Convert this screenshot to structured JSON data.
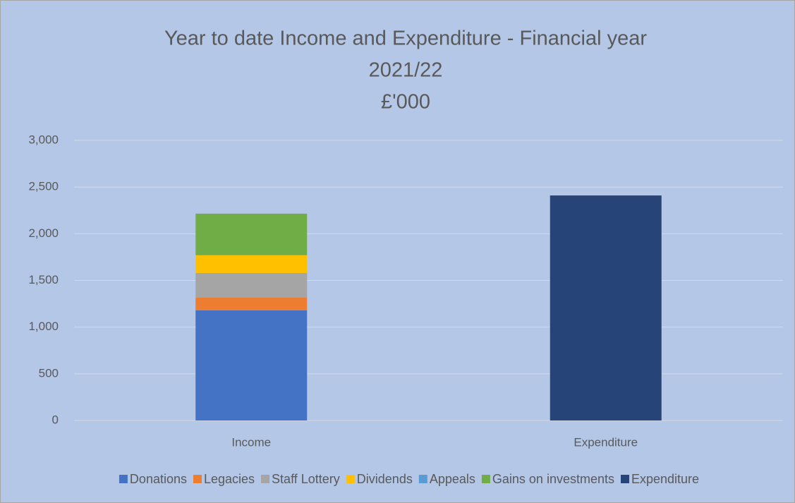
{
  "chart_data": {
    "type": "stacked_bar",
    "title": [
      "Year to date Income and Expenditure - Financial year",
      "2021/22",
      "£'000"
    ],
    "categories": [
      "Income",
      "Expenditure"
    ],
    "series": [
      {
        "name": "Donations",
        "color": "#4472c4",
        "values": [
          1180,
          null
        ]
      },
      {
        "name": "Legacies",
        "color": "#ed7d31",
        "values": [
          135,
          null
        ]
      },
      {
        "name": "Staff Lottery",
        "color": "#a5a5a5",
        "values": [
          265,
          null
        ]
      },
      {
        "name": "Dividends",
        "color": "#ffc000",
        "values": [
          190,
          null
        ]
      },
      {
        "name": "Appeals",
        "color": "#5b9bd5",
        "values": [
          0,
          null
        ]
      },
      {
        "name": "Gains on investments",
        "color": "#70ad47",
        "values": [
          445,
          null
        ]
      },
      {
        "name": "Expenditure",
        "color": "#264478",
        "values": [
          null,
          2410
        ]
      }
    ],
    "ylim": [
      0,
      3000
    ],
    "yticks": [
      0,
      500,
      {
        "value": 1000,
        "label": "1,000"
      },
      {
        "value": 1500,
        "label": "1,500"
      },
      {
        "value": 2000,
        "label": "2,000"
      },
      {
        "value": 2500,
        "label": "2,500"
      },
      {
        "value": 3000,
        "label": "3,000"
      }
    ],
    "grid": true,
    "legend": "bottom"
  }
}
